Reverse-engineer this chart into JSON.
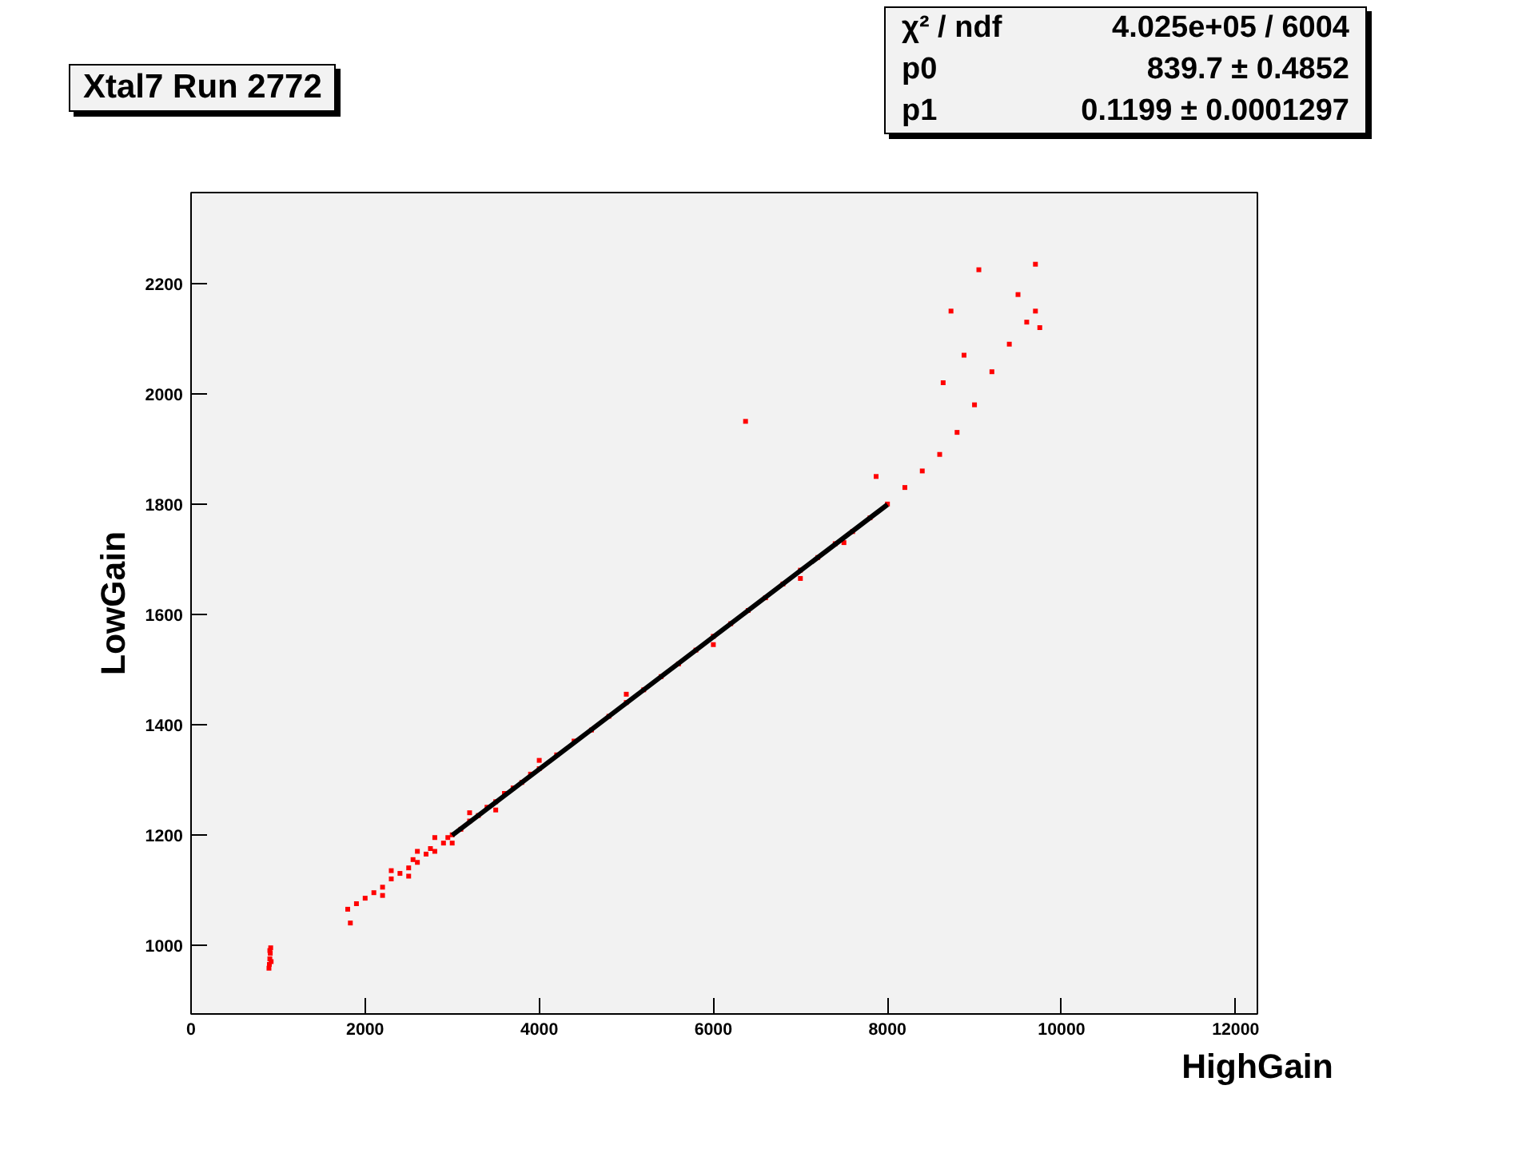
{
  "chart_data": {
    "type": "scatter",
    "title": "Xtal7 Run 2772",
    "xlabel": "HighGain",
    "ylabel": "LowGain",
    "annotations": [
      "χ² / ndf",
      "4.025e+05 / 6004",
      "p0",
      "839.7 ± 0.4852",
      "p1",
      "0.1199 ± 0.0001297"
    ],
    "xlim": [
      0,
      12250
    ],
    "ylim": [
      875,
      2365
    ],
    "xticks": [
      0,
      2000,
      4000,
      6000,
      8000,
      10000,
      12000
    ],
    "yticks": [
      1000,
      1200,
      1400,
      1600,
      1800,
      2000,
      2200
    ],
    "grid": false,
    "series": [
      {
        "marker": "square",
        "color": "#ff0000",
        "x": [
          900,
          905,
          910,
          915,
          895,
          920,
          905,
          1800,
          1830,
          1900,
          2000,
          2100,
          2200,
          2300,
          2400,
          2500,
          2550,
          2600,
          2700,
          2750,
          2800,
          2900,
          2950,
          3000,
          3100,
          3200,
          3300,
          3400,
          3500,
          3600,
          3700,
          3800,
          3900,
          4000,
          4200,
          4400,
          4600,
          4800,
          5000,
          5200,
          5400,
          5600,
          5800,
          6000,
          6200,
          6400,
          6600,
          6800,
          7000,
          7200,
          7400,
          7600,
          7800,
          8000,
          8200,
          8400,
          8600,
          8800,
          9000,
          9200,
          9400,
          9600,
          9700,
          2200,
          2300,
          2500,
          2600,
          2800,
          3000,
          3200,
          3500,
          4000,
          5000,
          6000,
          7000,
          7500,
          7870,
          6370,
          9050,
          9700,
          8730,
          8880,
          8640,
          9500,
          9750
        ],
        "values": [
          965,
          975,
          985,
          995,
          958,
          970,
          990,
          1065,
          1040,
          1075,
          1085,
          1095,
          1105,
          1120,
          1130,
          1140,
          1155,
          1150,
          1165,
          1175,
          1170,
          1185,
          1195,
          1200,
          1210,
          1225,
          1235,
          1250,
          1260,
          1275,
          1285,
          1295,
          1310,
          1320,
          1345,
          1370,
          1390,
          1415,
          1440,
          1463,
          1487,
          1510,
          1535,
          1560,
          1583,
          1607,
          1630,
          1655,
          1680,
          1703,
          1728,
          1750,
          1775,
          1800,
          1830,
          1860,
          1890,
          1930,
          1980,
          2040,
          2090,
          2130,
          2150,
          1090,
          1135,
          1125,
          1170,
          1195,
          1185,
          1240,
          1245,
          1335,
          1455,
          1545,
          1665,
          1730,
          1850,
          1950,
          2225,
          2235,
          2150,
          2070,
          2020,
          2180,
          2120
        ]
      },
      {
        "type": "line",
        "color": "#000000",
        "x": [
          3000,
          8000
        ],
        "values": [
          1199,
          1799
        ]
      }
    ]
  }
}
